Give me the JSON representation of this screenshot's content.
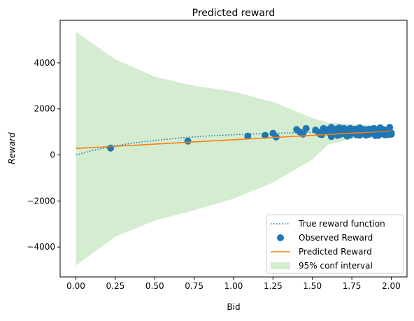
{
  "chart_data": {
    "type": "scatter",
    "title": "Predicted reward",
    "xlabel": "Bid",
    "ylabel": "Reward",
    "xlim": [
      -0.1,
      2.1
    ],
    "ylim": [
      -5300,
      5850
    ],
    "xticks": [
      0.0,
      0.25,
      0.5,
      0.75,
      1.0,
      1.25,
      1.5,
      1.75,
      2.0
    ],
    "xtick_labels": [
      "0.00",
      "0.25",
      "0.50",
      "0.75",
      "1.00",
      "1.25",
      "1.50",
      "1.75",
      "2.00"
    ],
    "yticks": [
      -4000,
      -2000,
      0,
      2000,
      4000
    ],
    "ytick_labels": [
      "−4000",
      "−2000",
      "0",
      "2000",
      "4000"
    ],
    "grid": false,
    "legend_placement": "lower-right",
    "legend": [
      "True reward function",
      "Observed Reward",
      "Predicted Reward",
      "95% conf interval"
    ],
    "colors": {
      "true_reward": "#1f77b4",
      "observed": "#1f77b4",
      "predicted": "#ff7f0e",
      "confidence": "#d4ecd0"
    },
    "true_reward_function": {
      "x": [
        0.0,
        0.1,
        0.2,
        0.3,
        0.4,
        0.5,
        0.6,
        0.7,
        0.8,
        0.9,
        1.0,
        1.1,
        1.2,
        1.3,
        1.4,
        1.5,
        1.6,
        1.7,
        1.8,
        1.9,
        2.0
      ],
      "y": [
        0,
        180,
        330,
        450,
        550,
        630,
        700,
        760,
        810,
        850,
        880,
        910,
        930,
        950,
        965,
        980,
        990,
        1000,
        1005,
        1010,
        1012
      ]
    },
    "predicted_reward": {
      "x": [
        0.0,
        2.0
      ],
      "y": [
        280,
        1040
      ]
    },
    "confidence_interval": {
      "x": [
        0.0,
        0.25,
        0.5,
        0.75,
        1.0,
        1.25,
        1.5,
        1.6,
        1.75,
        1.9,
        2.0
      ],
      "upper": [
        5350,
        4150,
        3400,
        3000,
        2750,
        2300,
        1600,
        1400,
        1350,
        1270,
        1250
      ],
      "lower": [
        -4800,
        -3550,
        -2850,
        -2400,
        -1900,
        -1200,
        -200,
        450,
        700,
        760,
        780
      ]
    },
    "observed": {
      "x": [
        0.22,
        0.71,
        1.09,
        1.2,
        1.25,
        1.27,
        1.4,
        1.42,
        1.44,
        1.46,
        1.52,
        1.54,
        1.55,
        1.57,
        1.58,
        1.6,
        1.61,
        1.62,
        1.63,
        1.64,
        1.65,
        1.66,
        1.67,
        1.68,
        1.69,
        1.7,
        1.71,
        1.72,
        1.73,
        1.74,
        1.75,
        1.76,
        1.77,
        1.78,
        1.79,
        1.8,
        1.81,
        1.82,
        1.83,
        1.84,
        1.85,
        1.86,
        1.87,
        1.88,
        1.89,
        1.9,
        1.91,
        1.92,
        1.93,
        1.94,
        1.95,
        1.96,
        1.97,
        1.98,
        1.99,
        2.0,
        1.62,
        1.66,
        1.72,
        1.78,
        1.84,
        1.9,
        1.96,
        2.0,
        1.56,
        1.68,
        1.74,
        1.8,
        1.86,
        1.92,
        1.98
      ],
      "y": [
        300,
        600,
        820,
        850,
        940,
        780,
        1100,
        1000,
        900,
        1150,
        1080,
        980,
        900,
        1150,
        1000,
        1100,
        950,
        1200,
        1050,
        980,
        1120,
        900,
        1180,
        1050,
        1000,
        1150,
        900,
        1100,
        1000,
        1150,
        950,
        1080,
        1120,
        900,
        1050,
        1180,
        950,
        1000,
        1100,
        1050,
        900,
        1120,
        1000,
        950,
        1150,
        880,
        1050,
        1000,
        1180,
        950,
        1100,
        900,
        1050,
        1000,
        1200,
        950,
        800,
        850,
        820,
        880,
        860,
        840,
        870,
        900,
        880,
        900,
        870,
        860,
        900,
        850,
        880
      ]
    }
  }
}
